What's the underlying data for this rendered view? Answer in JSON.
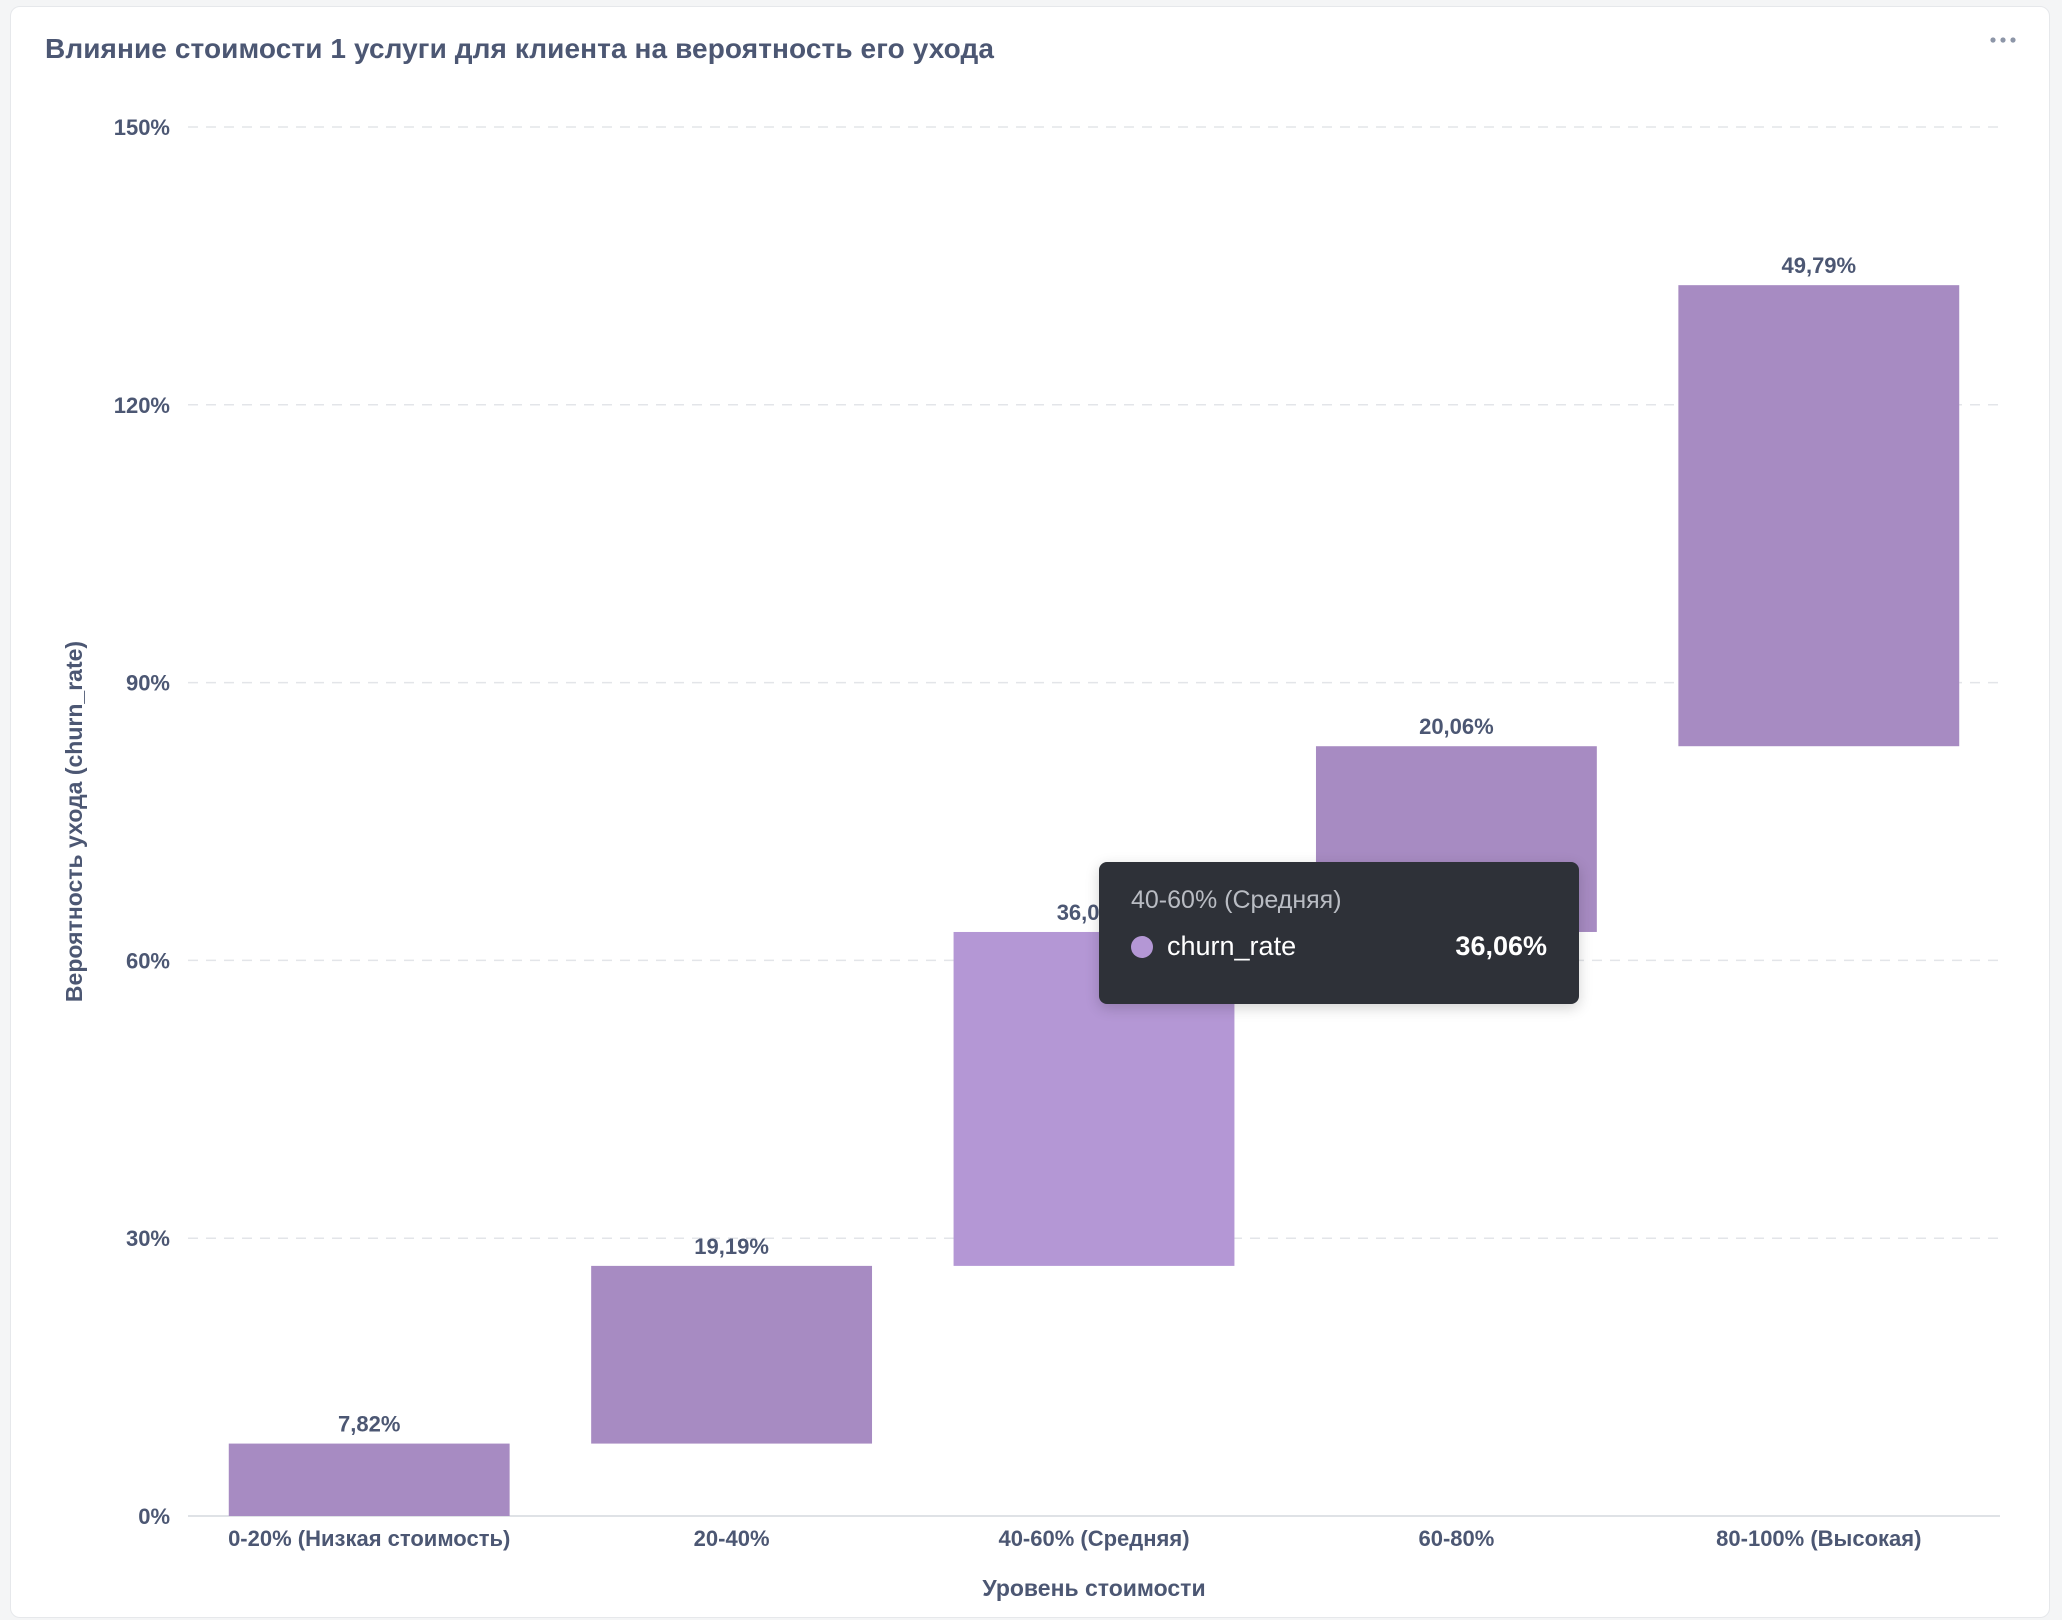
{
  "card": {
    "title": "Влияние стоимости 1 услуги для клиента на вероятность его ухода"
  },
  "colors": {
    "bar": "#a78bc2",
    "bar_highlight": "#b497d5",
    "grid": "#e3e5e9",
    "axis": "#dfe2e6"
  },
  "chart_data": {
    "type": "bar",
    "variant": "waterfall",
    "title": "Влияние стоимости 1 услуги для клиента на вероятность его ухода",
    "xlabel": "Уровень стоимости",
    "ylabel": "Вероятность ухода (churn_rate)",
    "categories": [
      "0-20% (Низкая стоимость)",
      "20-40%",
      "40-60% (Средняя)",
      "60-80%",
      "80-100% (Высокая)"
    ],
    "series": [
      {
        "name": "churn_rate",
        "values": [
          7.82,
          19.19,
          36.06,
          20.06,
          49.79
        ]
      }
    ],
    "value_labels": [
      "7,82%",
      "19,19%",
      "36,06%",
      "20,06%",
      "49,79%"
    ],
    "ylim": [
      0,
      150
    ],
    "yticks": [
      0,
      30,
      60,
      90,
      120,
      150
    ],
    "ytick_labels": [
      "0%",
      "30%",
      "60%",
      "90%",
      "120%",
      "150%"
    ],
    "grid": true,
    "highlighted_index": 2
  },
  "tooltip": {
    "header": "40-60% (Средняя)",
    "series_name": "churn_rate",
    "value": "36,06%"
  }
}
